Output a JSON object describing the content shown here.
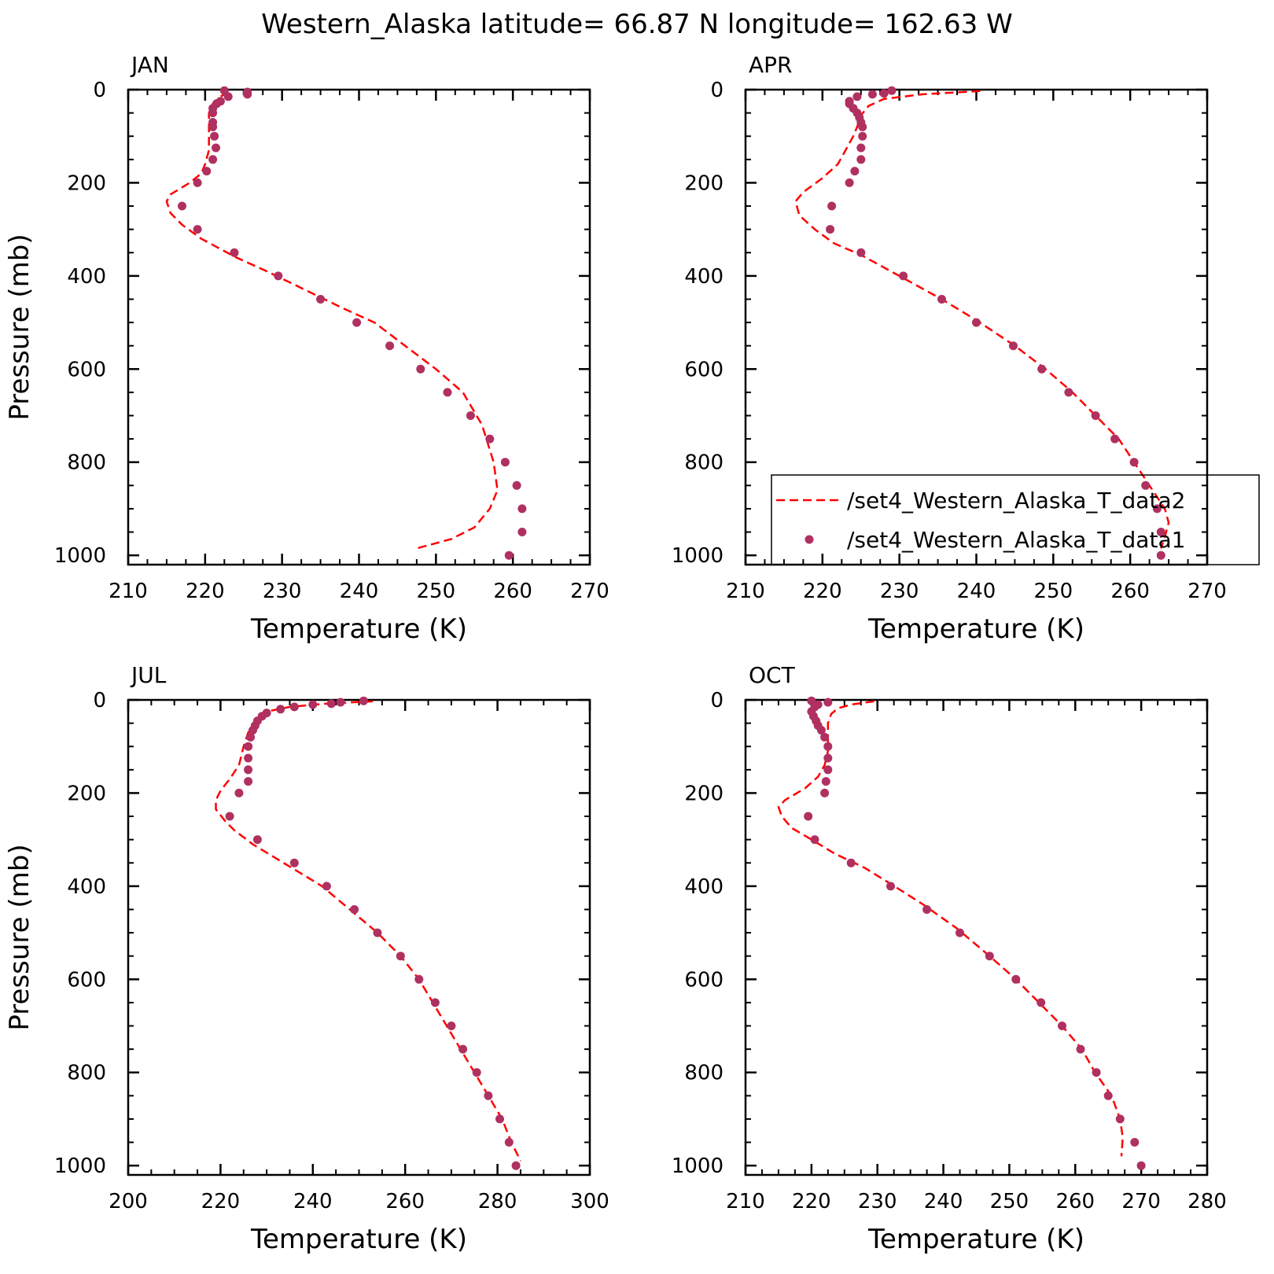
{
  "title": "Western_Alaska  latitude= 66.87 N longitude= 162.63 W",
  "colors": {
    "data2_line": "#ff0000",
    "data1_marker": "#b03060",
    "axis": "#000000"
  },
  "legend": {
    "entries": [
      {
        "label": "/set4_Western_Alaska_T_data2",
        "style": "dashed-line"
      },
      {
        "label": "/set4_Western_Alaska_T_data1",
        "style": "dot"
      }
    ],
    "placement": "lower-right of APR panel"
  },
  "chart_data": [
    {
      "type": "line",
      "panel": "JAN",
      "xlabel": "Temperature (K)",
      "ylabel": "Pressure (mb)",
      "xlim": [
        210,
        270
      ],
      "ylim": [
        1020,
        0
      ],
      "xticks": [
        210,
        220,
        230,
        240,
        250,
        260,
        270
      ],
      "yticks": [
        0,
        200,
        400,
        600,
        800,
        1000
      ],
      "grid": false,
      "series": [
        {
          "name": "/set4_Western_Alaska_T_data2",
          "style": "dashed-line",
          "points": [
            [
              223,
              5
            ],
            [
              222,
              15
            ],
            [
              221,
              30
            ],
            [
              220.5,
              50
            ],
            [
              220.5,
              70
            ],
            [
              220.5,
              100
            ],
            [
              220.5,
              130
            ],
            [
              220,
              160
            ],
            [
              219.5,
              180
            ],
            [
              218,
              200
            ],
            [
              215.5,
              225
            ],
            [
              215,
              240
            ],
            [
              215.5,
              265
            ],
            [
              217,
              290
            ],
            [
              219.5,
              320
            ],
            [
              224,
              360
            ],
            [
              228,
              390
            ],
            [
              233,
              430
            ],
            [
              238,
              470
            ],
            [
              242,
              500
            ],
            [
              246,
              550
            ],
            [
              250,
              600
            ],
            [
              253.5,
              650
            ],
            [
              256,
              720
            ],
            [
              257.5,
              800
            ],
            [
              258,
              860
            ],
            [
              257,
              900
            ],
            [
              255,
              940
            ],
            [
              252,
              965
            ],
            [
              247.5,
              985
            ]
          ]
        },
        {
          "name": "/set4_Western_Alaska_T_data1",
          "style": "dot",
          "points": [
            [
              222.5,
              2
            ],
            [
              225.5,
              5
            ],
            [
              225.5,
              10
            ],
            [
              223,
              15
            ],
            [
              222,
              25
            ],
            [
              221.5,
              30
            ],
            [
              221,
              40
            ],
            [
              221,
              50
            ],
            [
              221,
              70
            ],
            [
              221,
              80
            ],
            [
              221.2,
              100
            ],
            [
              221.4,
              125
            ],
            [
              221,
              150
            ],
            [
              220.2,
              175
            ],
            [
              219,
              200
            ],
            [
              217,
              250
            ],
            [
              219,
              300
            ],
            [
              223.8,
              350
            ],
            [
              229.5,
              400
            ],
            [
              235,
              450
            ],
            [
              239.7,
              500
            ],
            [
              244,
              550
            ],
            [
              248,
              600
            ],
            [
              251.5,
              650
            ],
            [
              254.5,
              700
            ],
            [
              257,
              750
            ],
            [
              259,
              800
            ],
            [
              260.5,
              850
            ],
            [
              261.2,
              900
            ],
            [
              261.2,
              950
            ],
            [
              259.5,
              1000
            ]
          ]
        }
      ]
    },
    {
      "type": "line",
      "panel": "APR",
      "xlabel": "Temperature (K)",
      "ylabel": "",
      "xlim": [
        210,
        270
      ],
      "ylim": [
        1020,
        0
      ],
      "xticks": [
        210,
        220,
        230,
        240,
        250,
        260,
        270
      ],
      "yticks": [
        0,
        200,
        400,
        600,
        800,
        1000
      ],
      "grid": false,
      "series": [
        {
          "name": "/set4_Western_Alaska_T_data2",
          "style": "dashed-line",
          "points": [
            [
              240.5,
              3
            ],
            [
              233,
              10
            ],
            [
              228,
              20
            ],
            [
              226,
              35
            ],
            [
              225,
              55
            ],
            [
              224.5,
              80
            ],
            [
              224,
              100
            ],
            [
              223,
              130
            ],
            [
              222,
              160
            ],
            [
              220,
              190
            ],
            [
              217.5,
              220
            ],
            [
              216.5,
              240
            ],
            [
              217,
              270
            ],
            [
              219,
              300
            ],
            [
              221.5,
              330
            ],
            [
              225,
              355
            ],
            [
              230,
              400
            ],
            [
              235.5,
              450
            ],
            [
              240,
              495
            ],
            [
              245,
              550
            ],
            [
              249,
              600
            ],
            [
              252.5,
              650
            ],
            [
              255.5,
              700
            ],
            [
              258.5,
              750
            ],
            [
              260.5,
              800
            ],
            [
              262.5,
              850
            ],
            [
              264.5,
              900
            ],
            [
              265,
              930
            ],
            [
              264.5,
              960
            ],
            [
              264,
              985
            ]
          ]
        },
        {
          "name": "/set4_Western_Alaska_T_data1",
          "style": "dot",
          "points": [
            [
              229,
              2
            ],
            [
              228,
              8
            ],
            [
              226.5,
              10
            ],
            [
              224.5,
              15
            ],
            [
              223.5,
              25
            ],
            [
              223.5,
              30
            ],
            [
              224,
              40
            ],
            [
              224.5,
              50
            ],
            [
              224.8,
              60
            ],
            [
              225,
              70
            ],
            [
              225.2,
              80
            ],
            [
              225.2,
              100
            ],
            [
              225,
              125
            ],
            [
              225,
              150
            ],
            [
              224.2,
              175
            ],
            [
              223.5,
              200
            ],
            [
              221.2,
              250
            ],
            [
              221,
              300
            ],
            [
              225,
              350
            ],
            [
              230.5,
              400
            ],
            [
              235.5,
              450
            ],
            [
              240,
              500
            ],
            [
              244.8,
              550
            ],
            [
              248.5,
              600
            ],
            [
              252,
              650
            ],
            [
              255.5,
              700
            ],
            [
              258,
              750
            ],
            [
              260.5,
              800
            ],
            [
              262,
              850
            ],
            [
              263.5,
              900
            ],
            [
              264,
              950
            ],
            [
              264,
              1000
            ]
          ]
        }
      ]
    },
    {
      "type": "line",
      "panel": "JUL",
      "xlabel": "Temperature (K)",
      "ylabel": "Pressure (mb)",
      "xlim": [
        200,
        300
      ],
      "ylim": [
        1020,
        0
      ],
      "xticks": [
        200,
        220,
        240,
        260,
        280,
        300
      ],
      "yticks": [
        0,
        200,
        400,
        600,
        800,
        1000
      ],
      "grid": false,
      "series": [
        {
          "name": "/set4_Western_Alaska_T_data2",
          "style": "dashed-line",
          "points": [
            [
              253,
              3
            ],
            [
              243,
              8
            ],
            [
              235,
              15
            ],
            [
              230,
              25
            ],
            [
              228,
              40
            ],
            [
              227,
              55
            ],
            [
              226,
              70
            ],
            [
              225,
              100
            ],
            [
              224,
              140
            ],
            [
              222,
              170
            ],
            [
              220,
              195
            ],
            [
              219,
              215
            ],
            [
              219,
              235
            ],
            [
              221,
              260
            ],
            [
              223,
              280
            ],
            [
              227,
              310
            ],
            [
              232,
              340
            ],
            [
              237,
              370
            ],
            [
              242,
              400
            ],
            [
              248,
              450
            ],
            [
              254,
              500
            ],
            [
              259,
              550
            ],
            [
              263,
              600
            ],
            [
              266,
              650
            ],
            [
              269,
              700
            ],
            [
              272,
              750
            ],
            [
              275,
              800
            ],
            [
              278,
              850
            ],
            [
              281,
              900
            ],
            [
              283,
              950
            ],
            [
              285,
              990
            ]
          ]
        },
        {
          "name": "/set4_Western_Alaska_T_data1",
          "style": "dot",
          "points": [
            [
              251,
              2
            ],
            [
              246,
              5
            ],
            [
              244,
              8
            ],
            [
              240,
              10
            ],
            [
              236,
              15
            ],
            [
              233,
              20
            ],
            [
              230,
              28
            ],
            [
              229,
              35
            ],
            [
              228,
              45
            ],
            [
              227.5,
              55
            ],
            [
              227,
              65
            ],
            [
              226.5,
              80
            ],
            [
              226,
              100
            ],
            [
              226,
              125
            ],
            [
              226,
              150
            ],
            [
              226,
              175
            ],
            [
              224,
              200
            ],
            [
              222,
              250
            ],
            [
              228,
              300
            ],
            [
              236,
              350
            ],
            [
              243,
              400
            ],
            [
              249,
              450
            ],
            [
              254,
              500
            ],
            [
              259,
              550
            ],
            [
              263,
              600
            ],
            [
              266.5,
              650
            ],
            [
              270,
              700
            ],
            [
              272.5,
              750
            ],
            [
              275.5,
              800
            ],
            [
              278,
              850
            ],
            [
              280.5,
              900
            ],
            [
              282.5,
              950
            ],
            [
              284,
              1000
            ]
          ]
        }
      ]
    },
    {
      "type": "line",
      "panel": "OCT",
      "xlabel": "Temperature (K)",
      "ylabel": "",
      "xlim": [
        210,
        280
      ],
      "ylim": [
        1020,
        0
      ],
      "xticks": [
        210,
        220,
        230,
        240,
        250,
        260,
        270,
        280
      ],
      "yticks": [
        0,
        200,
        400,
        600,
        800,
        1000
      ],
      "grid": false,
      "series": [
        {
          "name": "/set4_Western_Alaska_T_data2",
          "style": "dashed-line",
          "points": [
            [
              229.5,
              3
            ],
            [
              226,
              10
            ],
            [
              224,
              18
            ],
            [
              223,
              30
            ],
            [
              222.5,
              50
            ],
            [
              222.5,
              80
            ],
            [
              222.5,
              110
            ],
            [
              222,
              140
            ],
            [
              221,
              165
            ],
            [
              219,
              190
            ],
            [
              216,
              215
            ],
            [
              215,
              230
            ],
            [
              215.5,
              250
            ],
            [
              217,
              275
            ],
            [
              220,
              300
            ],
            [
              223.5,
              330
            ],
            [
              228,
              360
            ],
            [
              232,
              395
            ],
            [
              237,
              440
            ],
            [
              242,
              490
            ],
            [
              247,
              550
            ],
            [
              251,
              600
            ],
            [
              254.5,
              650
            ],
            [
              258,
              700
            ],
            [
              261,
              750
            ],
            [
              263,
              800
            ],
            [
              265.5,
              850
            ],
            [
              266.8,
              900
            ],
            [
              267.2,
              940
            ],
            [
              267,
              980
            ]
          ]
        },
        {
          "name": "/set4_Western_Alaska_T_data1",
          "style": "dot",
          "points": [
            [
              220,
              2
            ],
            [
              222.5,
              5
            ],
            [
              221,
              10
            ],
            [
              220.5,
              15
            ],
            [
              220,
              25
            ],
            [
              220.3,
              35
            ],
            [
              220.7,
              45
            ],
            [
              221,
              55
            ],
            [
              221.5,
              65
            ],
            [
              222,
              80
            ],
            [
              222.5,
              100
            ],
            [
              222.5,
              125
            ],
            [
              222.5,
              150
            ],
            [
              222.2,
              175
            ],
            [
              222,
              200
            ],
            [
              219.5,
              250
            ],
            [
              220.5,
              300
            ],
            [
              226,
              350
            ],
            [
              232,
              400
            ],
            [
              237.5,
              450
            ],
            [
              242.5,
              500
            ],
            [
              247,
              550
            ],
            [
              251,
              600
            ],
            [
              254.8,
              650
            ],
            [
              258,
              700
            ],
            [
              260.8,
              750
            ],
            [
              263.2,
              800
            ],
            [
              265,
              850
            ],
            [
              266.8,
              900
            ],
            [
              269,
              950
            ],
            [
              270,
              1000
            ]
          ]
        }
      ]
    }
  ]
}
